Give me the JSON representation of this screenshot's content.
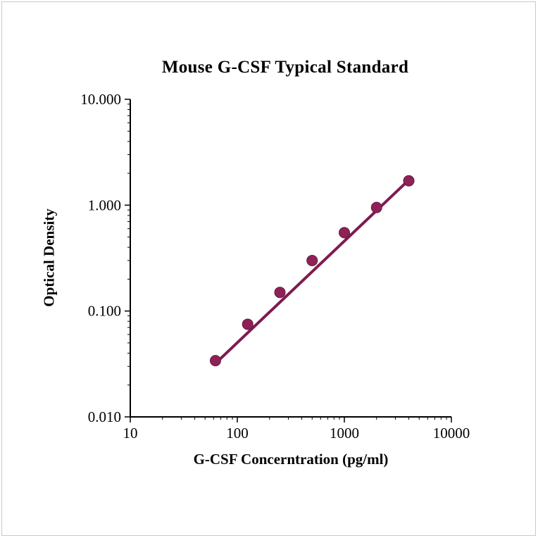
{
  "page": {
    "background": "#ffffff",
    "frame_border_color": "#c9c9c9"
  },
  "chart_data": {
    "type": "line",
    "title": "Mouse G-CSF Typical Standard",
    "xlabel": "G-CSF Concerntration (pg/ml)",
    "ylabel": "Optical Density",
    "x_scale": "log",
    "y_scale": "log",
    "xlim": [
      10,
      10000
    ],
    "ylim": [
      0.01,
      10
    ],
    "grid": false,
    "legend": "none",
    "x_ticks": [
      {
        "value": 10,
        "label": "10"
      },
      {
        "value": 100,
        "label": "100"
      },
      {
        "value": 1000,
        "label": "1000"
      },
      {
        "value": 10000,
        "label": "10000"
      }
    ],
    "y_ticks": [
      {
        "value": 10,
        "label": "10.000"
      },
      {
        "value": 1,
        "label": "1.000"
      },
      {
        "value": 0.1,
        "label": "0.100"
      },
      {
        "value": 0.01,
        "label": "0.010"
      }
    ],
    "series": [
      {
        "name": "Typical Standard",
        "marker": "circle",
        "marker_color": "#8E2256",
        "marker_edge_color": "#6B173F",
        "x": [
          62.5,
          125,
          250,
          500,
          1000,
          2000,
          4000
        ],
        "y": [
          0.034,
          0.075,
          0.15,
          0.3,
          0.55,
          0.95,
          1.7
        ]
      }
    ],
    "trendline": {
      "x": [
        62.5,
        4000
      ],
      "y": [
        0.032,
        1.73
      ],
      "color": "#7D1C4E",
      "width": 4
    }
  }
}
